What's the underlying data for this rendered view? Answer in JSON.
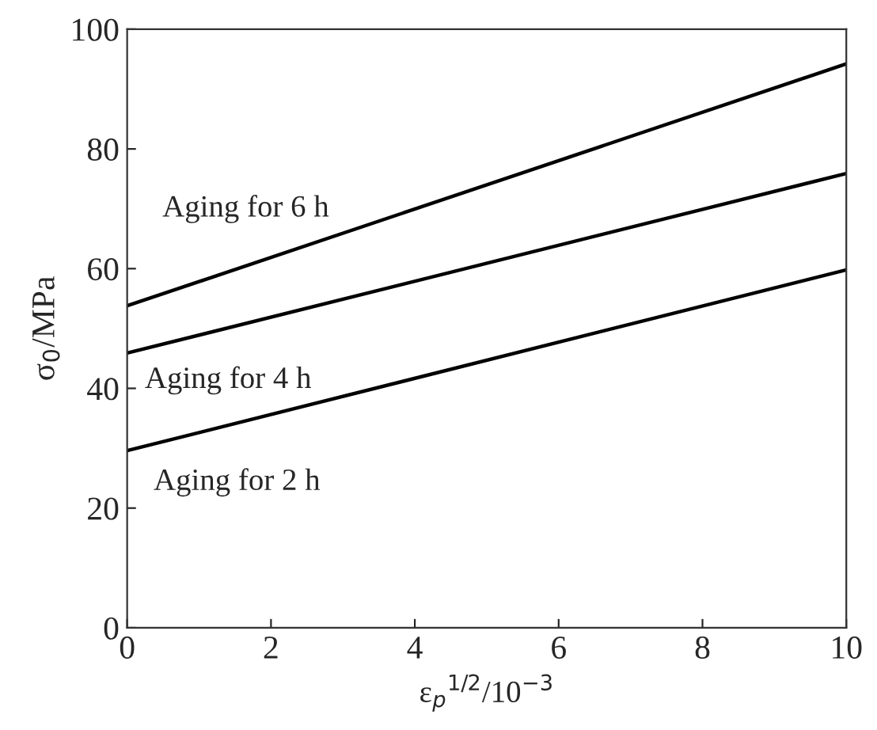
{
  "chart_data": {
    "type": "line",
    "xlabel": "ε$_{p}$$^{1/2}$/10$^{−3}$",
    "ylabel": "σ$_{0}$/MPa",
    "x": [
      0,
      10
    ],
    "series": [
      {
        "name": "Aging for 2 h",
        "color": "#000000",
        "values": [
          29.6,
          59.8
        ]
      },
      {
        "name": "Aging for 4 h",
        "color": "#000000",
        "values": [
          45.9,
          75.9
        ]
      },
      {
        "name": "Aging for 6 h",
        "color": "#000000",
        "values": [
          53.8,
          94.2
        ]
      }
    ],
    "xlim": [
      0,
      10
    ],
    "ylim": [
      0,
      100
    ],
    "xticks": [
      0,
      2,
      4,
      6,
      8,
      10
    ],
    "yticks": [
      0,
      20,
      40,
      60,
      80,
      100
    ],
    "grid": false,
    "legend": false,
    "line_style": "solid",
    "marker": "none"
  }
}
